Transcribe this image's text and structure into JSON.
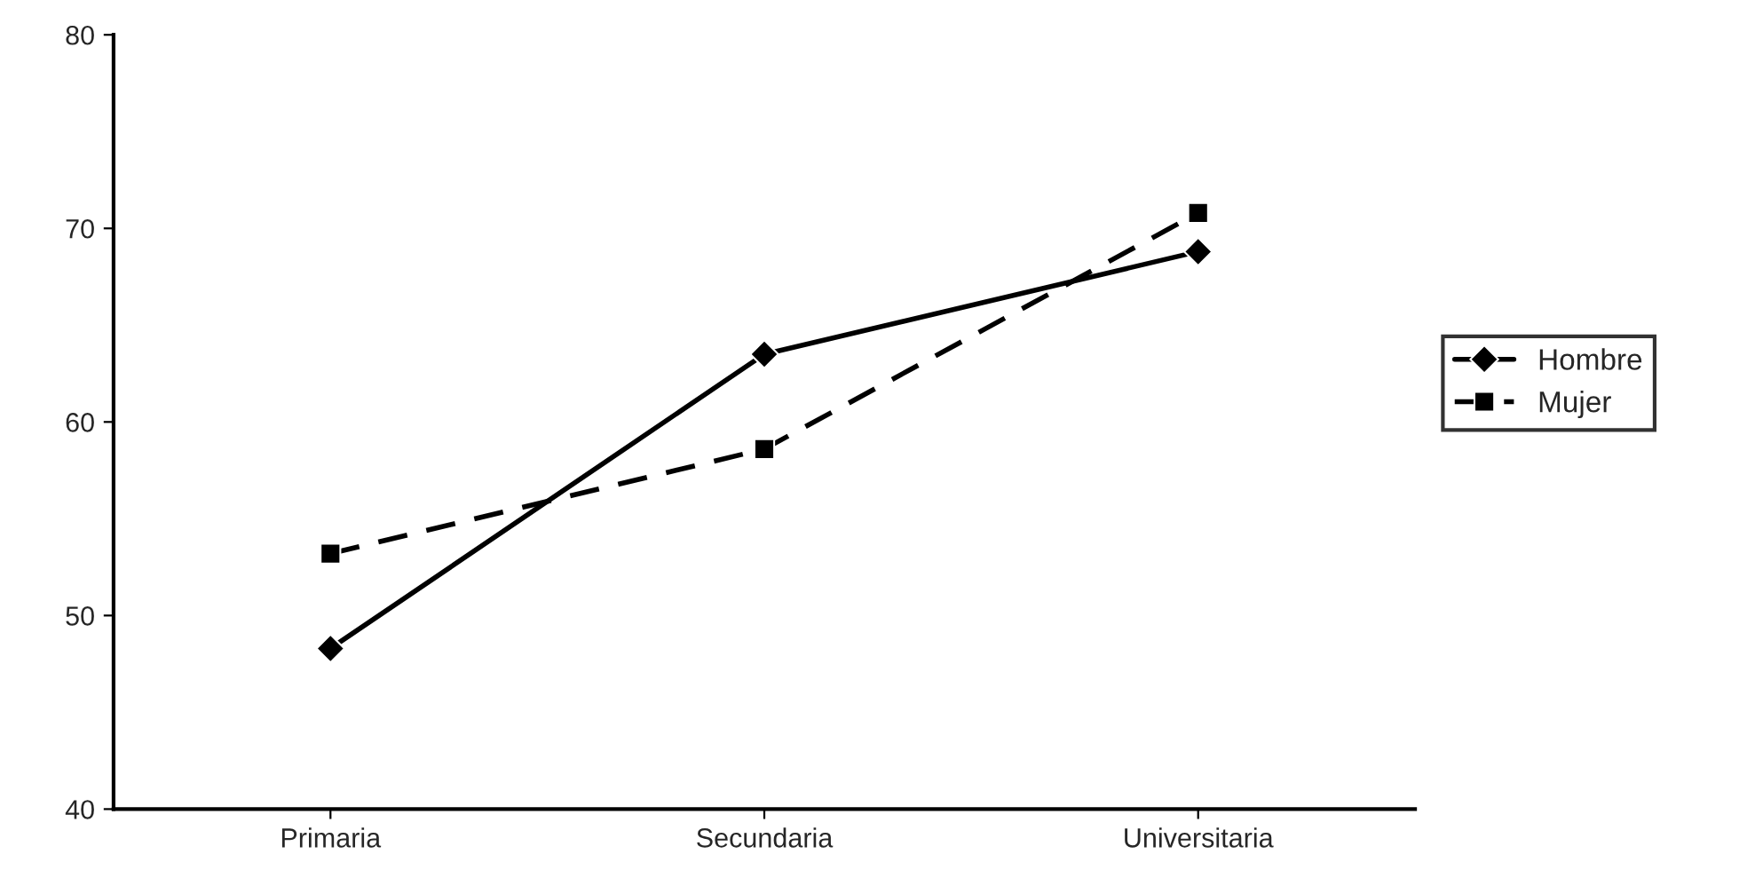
{
  "chart_data": {
    "type": "line",
    "categories": [
      "Primaria",
      "Secundaria",
      "Universitaria"
    ],
    "series": [
      {
        "name": "Hombre",
        "color": "#000000",
        "marker": "diamond",
        "line_style": "solid",
        "values": [
          48.3,
          63.5,
          68.8
        ]
      },
      {
        "name": "Mujer",
        "color": "#000000",
        "marker": "square",
        "line_style": "dashed",
        "values": [
          53.2,
          58.6,
          70.8
        ]
      }
    ],
    "ylim": [
      40,
      80
    ],
    "yticks": [
      40,
      50,
      60,
      70,
      80
    ],
    "grid": false,
    "legend": "right"
  }
}
